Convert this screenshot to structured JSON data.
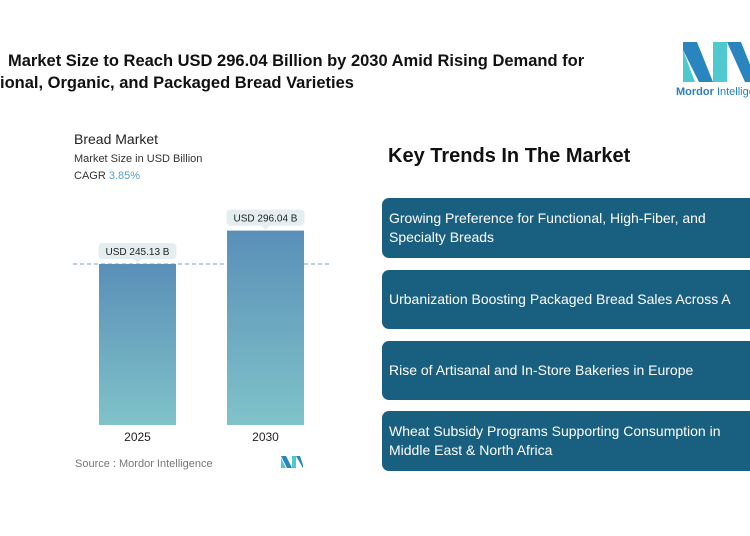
{
  "title": {
    "line1": "Market Size to Reach USD 296.04 Billion by 2030 Amid Rising Demand for",
    "line2": "ional, Organic, and Packaged Bread Varieties"
  },
  "logo": {
    "brand_bold": "Mordor",
    "brand_rest": " Intellige",
    "colors": {
      "dark": "#2a84bd",
      "light": "#4dc9cf"
    }
  },
  "chart_header": {
    "title": "Bread Market",
    "subtitle": "Market Size in USD Billion",
    "cagr_label": "CAGR",
    "cagr_value": "3.85%"
  },
  "chart_data": {
    "type": "bar",
    "categories": [
      "2025",
      "2030"
    ],
    "values": [
      245.13,
      296.04
    ],
    "data_labels": [
      "USD 245.13 B",
      "USD 296.04 B"
    ],
    "ylim": [
      0,
      296.04
    ],
    "reference_line": 245.13,
    "colors": {
      "top": "#5a8fb8",
      "bottom": "#7fc3c9"
    }
  },
  "source": "Source :  Mordor Intelligence",
  "key_trends": {
    "heading": "Key Trends In The Market",
    "items": [
      "Growing Preference for Functional, High-Fiber, and\nSpecialty Breads",
      "Urbanization Boosting Packaged Bread Sales Across A",
      "Rise of Artisanal and In-Store Bakeries in Europe",
      "Wheat Subsidy Programs Supporting Consumption in\nMiddle East & North Africa"
    ]
  }
}
